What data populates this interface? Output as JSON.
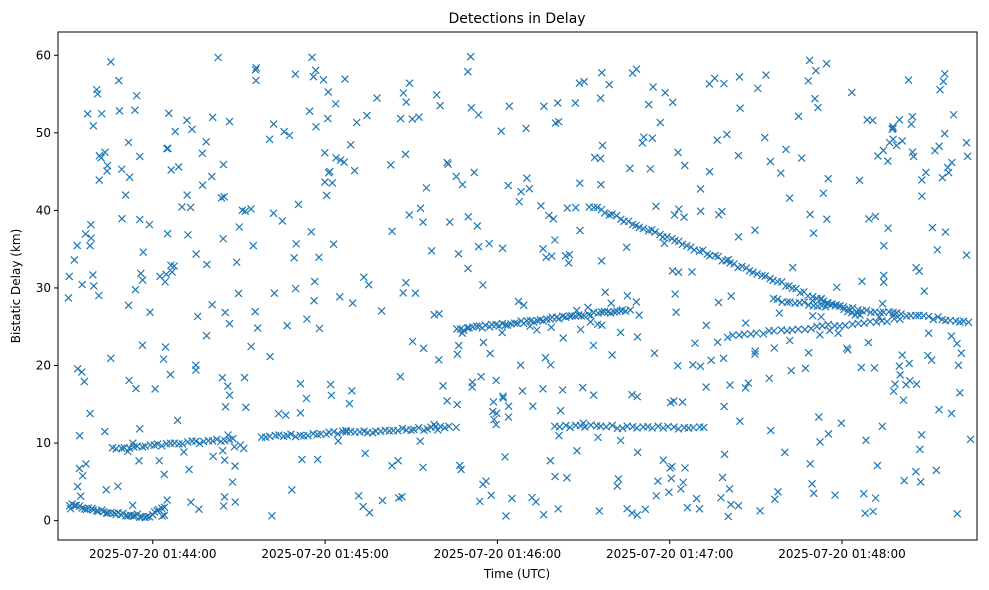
{
  "chart_data": {
    "type": "scatter",
    "title": "Detections in Delay",
    "xlabel": "Time (UTC)",
    "ylabel": "Bistatic Delay (km)",
    "marker": "x",
    "color": "#1f77b4",
    "x_axis": {
      "type": "time",
      "range": [
        "2025-07-20 01:43:27",
        "2025-07-20 01:48:47"
      ],
      "ticks": [
        "2025-07-20 01:44:00",
        "2025-07-20 01:45:00",
        "2025-07-20 01:46:00",
        "2025-07-20 01:47:00",
        "2025-07-20 01:48:00"
      ]
    },
    "y_axis": {
      "range": [
        -2.5,
        63
      ],
      "ticks": [
        0,
        10,
        20,
        30,
        40,
        50,
        60
      ]
    },
    "grid": false,
    "legend": "none",
    "tracks": [
      {
        "description": "lower track 1",
        "x_start": "2025-07-20 01:43:31",
        "x_end": "2025-07-20 01:44:04",
        "y_start": 2.0,
        "y_end": 0.8,
        "curve": "dip-then-rise",
        "points": 40
      },
      {
        "description": "lower track 2",
        "x_start": "2025-07-20 01:43:46",
        "x_end": "2025-07-20 01:44:28",
        "y_start": 9.2,
        "y_end": 10.5,
        "points": 30
      },
      {
        "description": "lower track 3",
        "x_start": "2025-07-20 01:44:38",
        "x_end": "2025-07-20 01:45:43",
        "y_start": 10.8,
        "y_end": 12.0,
        "points": 45
      },
      {
        "description": "middle rising track",
        "x_start": "2025-07-20 01:45:46",
        "x_end": "2025-07-20 01:46:46",
        "y_start": 24.6,
        "y_end": 27.2,
        "points": 55
      },
      {
        "description": "upper descending track",
        "x_start": "2025-07-20 01:46:32",
        "x_end": "2025-07-20 01:48:06",
        "y_start": 40.6,
        "y_end": 26.5,
        "points": 70
      },
      {
        "description": "right cluster track",
        "x_start": "2025-07-20 01:47:36",
        "x_end": "2025-07-20 01:48:44",
        "y_start": 28.5,
        "y_end": 25.6,
        "points": 45
      },
      {
        "description": "mid-right flat track",
        "x_start": "2025-07-20 01:46:20",
        "x_end": "2025-07-20 01:47:12",
        "y_start": 12.2,
        "y_end": 11.9,
        "points": 30
      },
      {
        "description": "right flat track",
        "x_start": "2025-07-20 01:47:20",
        "x_end": "2025-07-20 01:48:20",
        "y_start": 23.8,
        "y_end": 26.0,
        "points": 30
      }
    ],
    "scatter_noise": {
      "count": 620,
      "x_range": [
        "2025-07-20 01:43:30",
        "2025-07-20 01:48:45"
      ],
      "y_range": [
        0.5,
        60
      ]
    }
  }
}
